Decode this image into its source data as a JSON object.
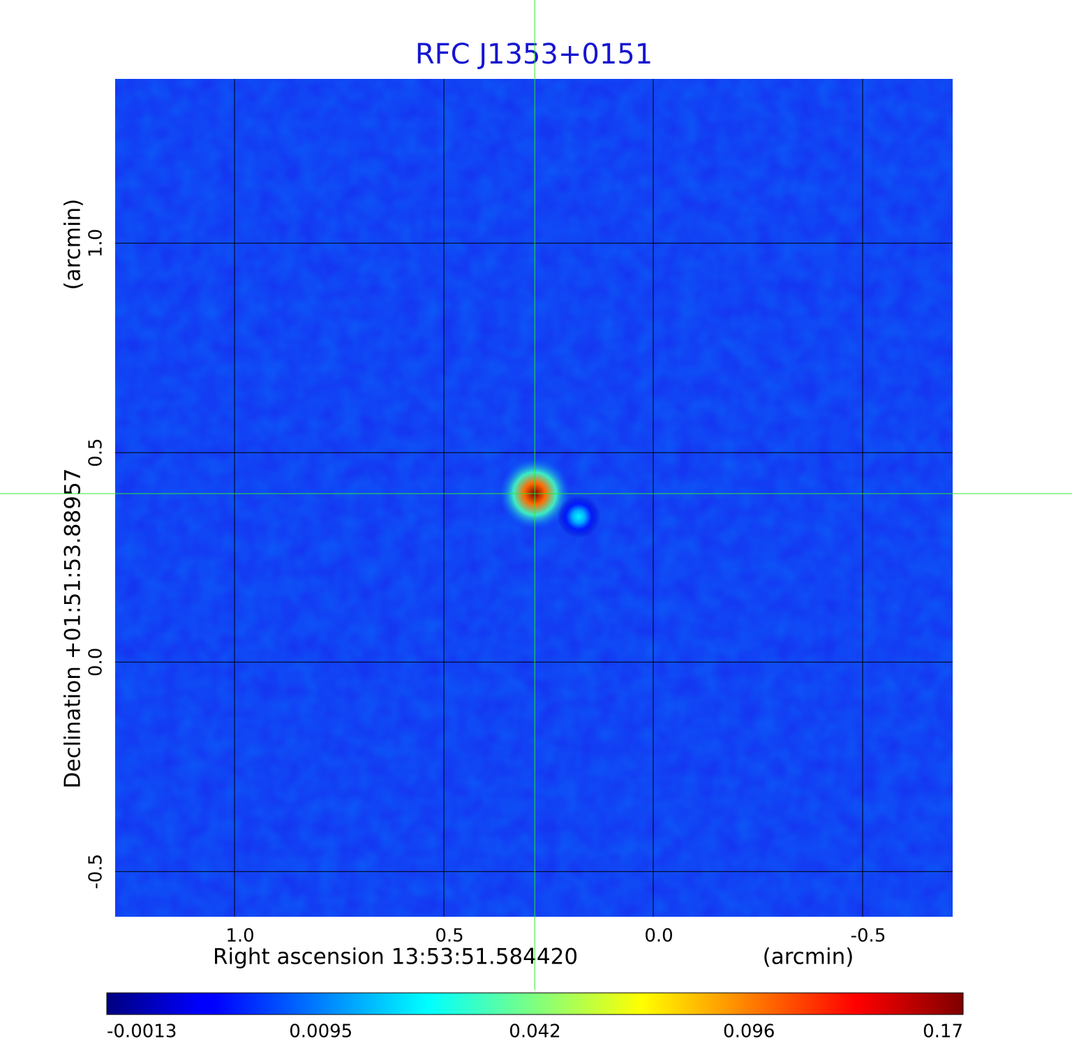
{
  "chart_data": {
    "type": "image",
    "title": "RFC J1353+0151",
    "x_label": "Right ascension  13:53:51.584420",
    "x_unit": "(arcmin)",
    "y_label": "Declination  +01:51:53.88957",
    "y_unit": "(arcmin)",
    "xlim": [
      1.285,
      -0.715
    ],
    "ylim": [
      -0.608,
      1.392
    ],
    "xticks": [
      {
        "value": 1,
        "label": "1.0"
      },
      0.5,
      {
        "value": 0,
        "label": "0.0"
      },
      -0.5
    ],
    "yticks": [
      {
        "value": 1,
        "label": "1.0"
      },
      0.5,
      {
        "value": 0,
        "label": "0.0"
      },
      -0.5
    ],
    "grid": true,
    "colormap": "jet",
    "colorbar_ticks": [
      -0.0013,
      0.0095,
      0.042,
      0.096,
      0.17
    ],
    "sources": [
      {
        "x": 0.283,
        "y": 0.402,
        "peak": 0.17
      },
      {
        "x": 0.178,
        "y": 0.347,
        "peak": 0.025
      }
    ]
  }
}
